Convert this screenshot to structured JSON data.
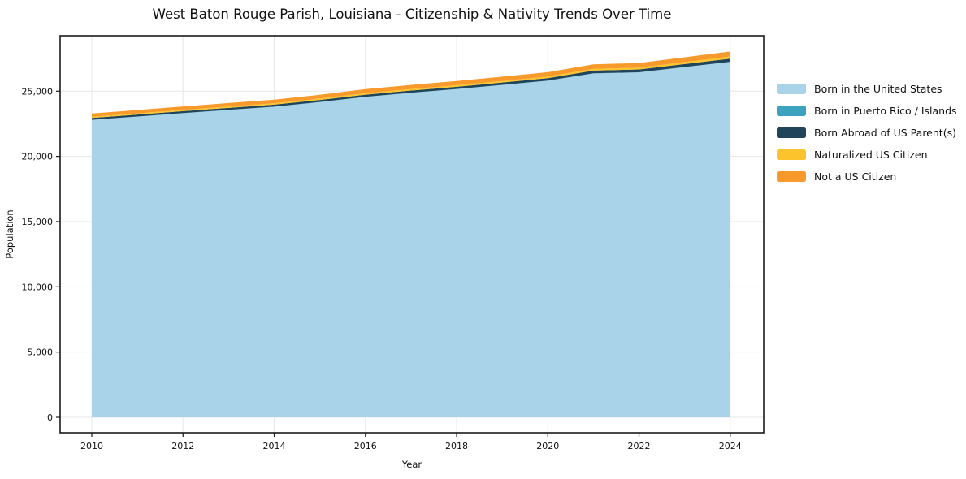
{
  "chart_data": {
    "type": "area",
    "stacked": true,
    "title": "West Baton Rouge Parish, Louisiana - Citizenship & Nativity Trends Over Time",
    "xlabel": "Year",
    "ylabel": "Population",
    "x": [
      2010,
      2011,
      2012,
      2013,
      2014,
      2015,
      2016,
      2017,
      2018,
      2019,
      2020,
      2021,
      2022,
      2023,
      2024
    ],
    "series": [
      {
        "name": "Born in the United States",
        "color": "#a8d3e8",
        "values": [
          22795,
          23050,
          23310,
          23560,
          23805,
          24160,
          24560,
          24870,
          25155,
          25475,
          25805,
          26360,
          26440,
          26845,
          27245
        ]
      },
      {
        "name": "Born in Puerto Rico / Islands",
        "color": "#3ba3c0",
        "values": [
          10,
          10,
          10,
          10,
          10,
          10,
          10,
          10,
          10,
          10,
          10,
          10,
          10,
          10,
          10
        ]
      },
      {
        "name": "Born Abroad of US Parent(s)",
        "color": "#20445a",
        "values": [
          145,
          148,
          150,
          152,
          155,
          158,
          162,
          166,
          172,
          178,
          185,
          210,
          215,
          225,
          240
        ]
      },
      {
        "name": "Naturalized US Citizen",
        "color": "#fcc32d",
        "values": [
          90,
          95,
          100,
          105,
          110,
          112,
          115,
          118,
          122,
          126,
          130,
          135,
          145,
          155,
          165
        ]
      },
      {
        "name": "Not a US Citizen",
        "color": "#f8992b",
        "values": [
          250,
          255,
          260,
          265,
          270,
          280,
          310,
          315,
          320,
          325,
          330,
          340,
          350,
          365,
          380
        ]
      }
    ],
    "xticks": [
      2010,
      2012,
      2014,
      2016,
      2018,
      2020,
      2022,
      2024
    ],
    "yticks": [
      0,
      5000,
      10000,
      15000,
      20000,
      25000
    ],
    "xlim": [
      2009.3,
      2024.73
    ],
    "ylim": [
      0,
      29250
    ],
    "grid": true,
    "legend_position": "right",
    "colors": {
      "axis": "#1a1a1a",
      "grid": "#e7e7e7",
      "background": "#ffffff"
    }
  }
}
